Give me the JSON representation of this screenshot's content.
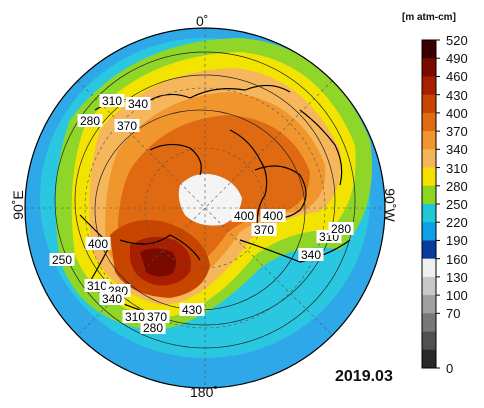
{
  "map": {
    "date": "2019.03",
    "orientation": {
      "top": "0˚",
      "bottom": "180˚",
      "left": "90˚E",
      "right": "90˚W"
    },
    "contour_labels": [
      "310",
      "340",
      "280",
      "370",
      "400",
      "400",
      "370",
      "310",
      "280",
      "340",
      "400",
      "250",
      "310",
      "280",
      "340",
      "310",
      "370",
      "280",
      "430"
    ]
  },
  "colorbar": {
    "unit": "[m atm-cm]",
    "ticks": [
      "520",
      "490",
      "460",
      "430",
      "400",
      "370",
      "340",
      "310",
      "280",
      "250",
      "220",
      "190",
      "160",
      "130",
      "100",
      "70",
      "0"
    ],
    "colors": [
      "#3a0000",
      "#7a0a00",
      "#a81e00",
      "#c84500",
      "#e06a10",
      "#f0962c",
      "#f5b55a",
      "#f5e000",
      "#8cd61e",
      "#1ec8d6",
      "#0ca0e6",
      "#0a3ca0",
      "#f0f0f0",
      "#c8c8c8",
      "#a0a0a0",
      "#787878",
      "#505050",
      "#282828"
    ]
  }
}
